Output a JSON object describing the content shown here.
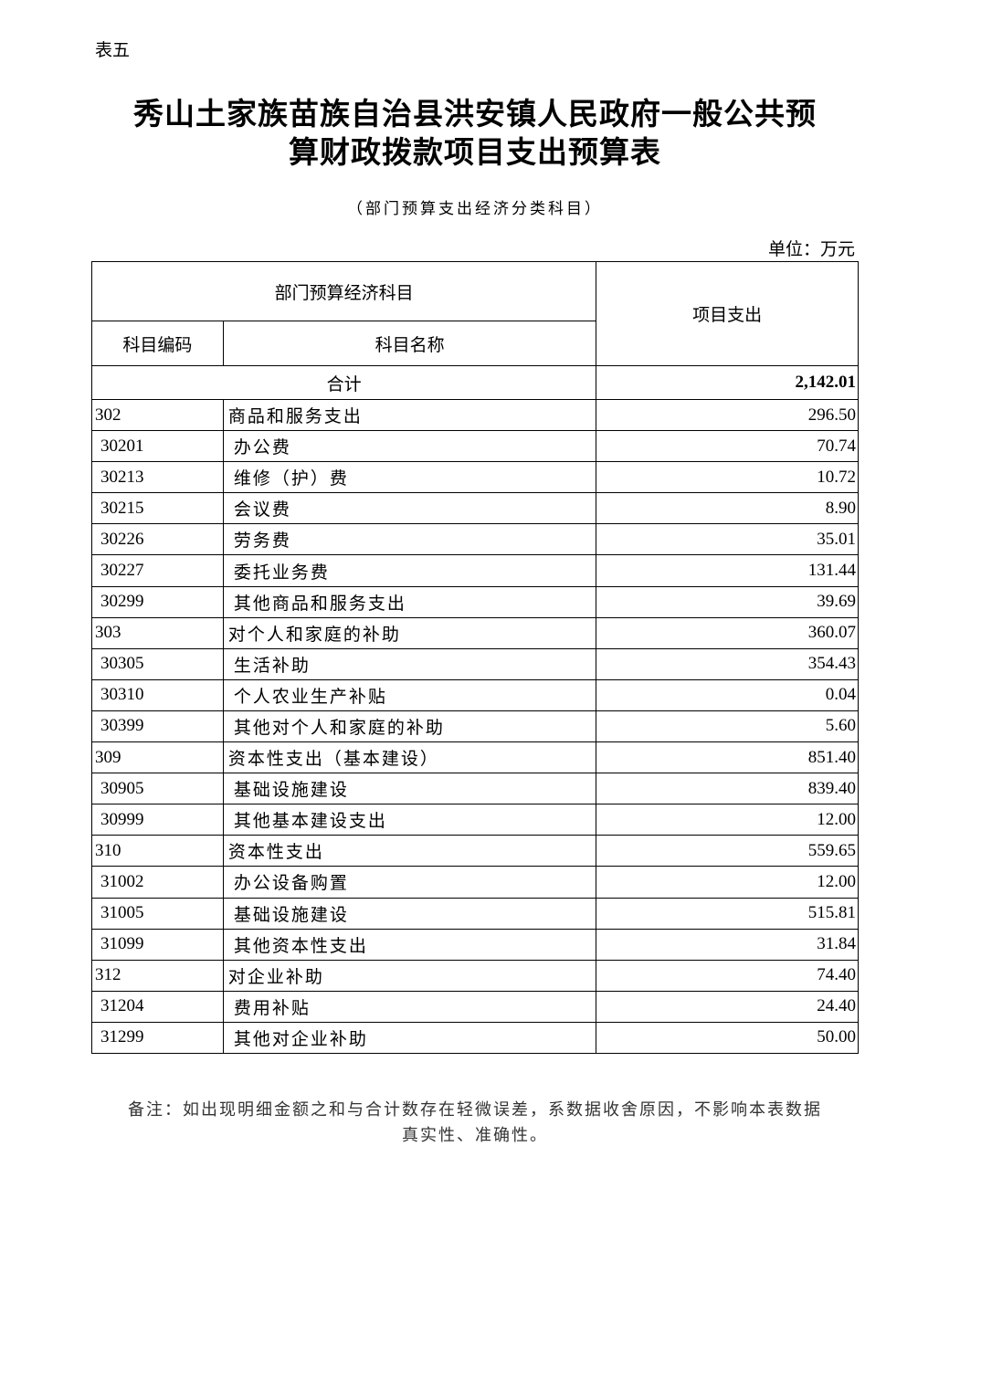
{
  "doc_label": "表五",
  "title_line1": "秀山土家族苗族自治县洪安镇人民政府一般公共预",
  "title_line2": "算财政拨款项目支出预算表",
  "subtitle": "（部门预算支出经济分类科目）",
  "unit": "单位：万元",
  "headers": {
    "group": "部门预算经济科目",
    "code": "科目编码",
    "name": "科目名称",
    "amount": "项目支出"
  },
  "total": {
    "label": "合计",
    "amount": "2,142.01"
  },
  "rows": [
    {
      "code": "302",
      "name": "商品和服务支出",
      "amount": "296.50",
      "level": 1
    },
    {
      "code": "30201",
      "name": "办公费",
      "amount": "70.74",
      "level": 2
    },
    {
      "code": "30213",
      "name": "维修（护）费",
      "amount": "10.72",
      "level": 2
    },
    {
      "code": "30215",
      "name": "会议费",
      "amount": "8.90",
      "level": 2
    },
    {
      "code": "30226",
      "name": "劳务费",
      "amount": "35.01",
      "level": 2
    },
    {
      "code": "30227",
      "name": "委托业务费",
      "amount": "131.44",
      "level": 2
    },
    {
      "code": "30299",
      "name": "其他商品和服务支出",
      "amount": "39.69",
      "level": 2
    },
    {
      "code": "303",
      "name": "对个人和家庭的补助",
      "amount": "360.07",
      "level": 1
    },
    {
      "code": "30305",
      "name": "生活补助",
      "amount": "354.43",
      "level": 2
    },
    {
      "code": "30310",
      "name": "个人农业生产补贴",
      "amount": "0.04",
      "level": 2
    },
    {
      "code": "30399",
      "name": "其他对个人和家庭的补助",
      "amount": "5.60",
      "level": 2
    },
    {
      "code": "309",
      "name": "资本性支出（基本建设）",
      "amount": "851.40",
      "level": 1
    },
    {
      "code": "30905",
      "name": "基础设施建设",
      "amount": "839.40",
      "level": 2
    },
    {
      "code": "30999",
      "name": "其他基本建设支出",
      "amount": "12.00",
      "level": 2
    },
    {
      "code": "310",
      "name": "资本性支出",
      "amount": "559.65",
      "level": 1
    },
    {
      "code": "31002",
      "name": "办公设备购置",
      "amount": "12.00",
      "level": 2
    },
    {
      "code": "31005",
      "name": "基础设施建设",
      "amount": "515.81",
      "level": 2
    },
    {
      "code": "31099",
      "name": "其他资本性支出",
      "amount": "31.84",
      "level": 2
    },
    {
      "code": "312",
      "name": "对企业补助",
      "amount": "74.40",
      "level": 1
    },
    {
      "code": "31204",
      "name": "费用补贴",
      "amount": "24.40",
      "level": 2
    },
    {
      "code": "31299",
      "name": "其他对企业补助",
      "amount": "50.00",
      "level": 2
    }
  ],
  "note_line1": "备注：如出现明细金额之和与合计数存在轻微误差，系数据收舍原因，不影响本表数据",
  "note_line2": "真实性、准确性。"
}
